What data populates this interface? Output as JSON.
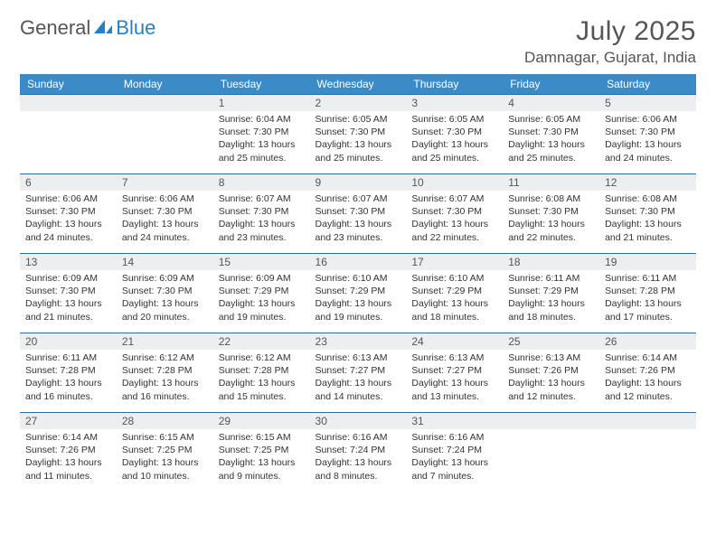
{
  "logo": {
    "text1": "General",
    "text2": "Blue"
  },
  "header": {
    "month_title": "July 2025",
    "location": "Damnagar, Gujarat, India"
  },
  "colors": {
    "header_bg": "#3b8bc9",
    "header_text": "#ffffff",
    "daynum_bg": "#eceef0",
    "row_border": "#2a6fa5",
    "logo_gray": "#555555",
    "logo_blue": "#2a7fc4"
  },
  "day_headers": [
    "Sunday",
    "Monday",
    "Tuesday",
    "Wednesday",
    "Thursday",
    "Friday",
    "Saturday"
  ],
  "weeks": [
    [
      null,
      null,
      {
        "n": "1",
        "sr": "6:04 AM",
        "ss": "7:30 PM",
        "dl": "13 hours and 25 minutes."
      },
      {
        "n": "2",
        "sr": "6:05 AM",
        "ss": "7:30 PM",
        "dl": "13 hours and 25 minutes."
      },
      {
        "n": "3",
        "sr": "6:05 AM",
        "ss": "7:30 PM",
        "dl": "13 hours and 25 minutes."
      },
      {
        "n": "4",
        "sr": "6:05 AM",
        "ss": "7:30 PM",
        "dl": "13 hours and 25 minutes."
      },
      {
        "n": "5",
        "sr": "6:06 AM",
        "ss": "7:30 PM",
        "dl": "13 hours and 24 minutes."
      }
    ],
    [
      {
        "n": "6",
        "sr": "6:06 AM",
        "ss": "7:30 PM",
        "dl": "13 hours and 24 minutes."
      },
      {
        "n": "7",
        "sr": "6:06 AM",
        "ss": "7:30 PM",
        "dl": "13 hours and 24 minutes."
      },
      {
        "n": "8",
        "sr": "6:07 AM",
        "ss": "7:30 PM",
        "dl": "13 hours and 23 minutes."
      },
      {
        "n": "9",
        "sr": "6:07 AM",
        "ss": "7:30 PM",
        "dl": "13 hours and 23 minutes."
      },
      {
        "n": "10",
        "sr": "6:07 AM",
        "ss": "7:30 PM",
        "dl": "13 hours and 22 minutes."
      },
      {
        "n": "11",
        "sr": "6:08 AM",
        "ss": "7:30 PM",
        "dl": "13 hours and 22 minutes."
      },
      {
        "n": "12",
        "sr": "6:08 AM",
        "ss": "7:30 PM",
        "dl": "13 hours and 21 minutes."
      }
    ],
    [
      {
        "n": "13",
        "sr": "6:09 AM",
        "ss": "7:30 PM",
        "dl": "13 hours and 21 minutes."
      },
      {
        "n": "14",
        "sr": "6:09 AM",
        "ss": "7:30 PM",
        "dl": "13 hours and 20 minutes."
      },
      {
        "n": "15",
        "sr": "6:09 AM",
        "ss": "7:29 PM",
        "dl": "13 hours and 19 minutes."
      },
      {
        "n": "16",
        "sr": "6:10 AM",
        "ss": "7:29 PM",
        "dl": "13 hours and 19 minutes."
      },
      {
        "n": "17",
        "sr": "6:10 AM",
        "ss": "7:29 PM",
        "dl": "13 hours and 18 minutes."
      },
      {
        "n": "18",
        "sr": "6:11 AM",
        "ss": "7:29 PM",
        "dl": "13 hours and 18 minutes."
      },
      {
        "n": "19",
        "sr": "6:11 AM",
        "ss": "7:28 PM",
        "dl": "13 hours and 17 minutes."
      }
    ],
    [
      {
        "n": "20",
        "sr": "6:11 AM",
        "ss": "7:28 PM",
        "dl": "13 hours and 16 minutes."
      },
      {
        "n": "21",
        "sr": "6:12 AM",
        "ss": "7:28 PM",
        "dl": "13 hours and 16 minutes."
      },
      {
        "n": "22",
        "sr": "6:12 AM",
        "ss": "7:28 PM",
        "dl": "13 hours and 15 minutes."
      },
      {
        "n": "23",
        "sr": "6:13 AM",
        "ss": "7:27 PM",
        "dl": "13 hours and 14 minutes."
      },
      {
        "n": "24",
        "sr": "6:13 AM",
        "ss": "7:27 PM",
        "dl": "13 hours and 13 minutes."
      },
      {
        "n": "25",
        "sr": "6:13 AM",
        "ss": "7:26 PM",
        "dl": "13 hours and 12 minutes."
      },
      {
        "n": "26",
        "sr": "6:14 AM",
        "ss": "7:26 PM",
        "dl": "13 hours and 12 minutes."
      }
    ],
    [
      {
        "n": "27",
        "sr": "6:14 AM",
        "ss": "7:26 PM",
        "dl": "13 hours and 11 minutes."
      },
      {
        "n": "28",
        "sr": "6:15 AM",
        "ss": "7:25 PM",
        "dl": "13 hours and 10 minutes."
      },
      {
        "n": "29",
        "sr": "6:15 AM",
        "ss": "7:25 PM",
        "dl": "13 hours and 9 minutes."
      },
      {
        "n": "30",
        "sr": "6:16 AM",
        "ss": "7:24 PM",
        "dl": "13 hours and 8 minutes."
      },
      {
        "n": "31",
        "sr": "6:16 AM",
        "ss": "7:24 PM",
        "dl": "13 hours and 7 minutes."
      },
      null,
      null
    ]
  ],
  "labels": {
    "sunrise": "Sunrise:",
    "sunset": "Sunset:",
    "daylight": "Daylight:"
  }
}
